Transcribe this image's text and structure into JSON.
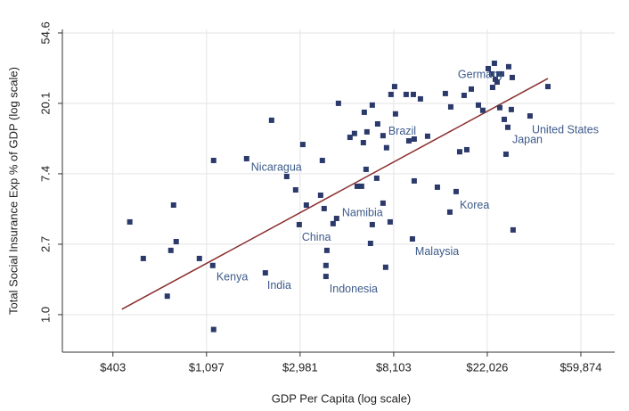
{
  "chart_data": {
    "type": "scatter",
    "xlabel": "GDP Per Capita (log scale)",
    "ylabel": "Total Social Insurance Exp % of GDP (log scale)",
    "xscale": "log",
    "yscale": "log",
    "grid": true,
    "xlim": [
      235,
      86000
    ],
    "ylim": [
      0.587,
      57.4
    ],
    "xticks": [
      {
        "value": 403.43,
        "label": "$403"
      },
      {
        "value": 1096.63,
        "label": "$1,097"
      },
      {
        "value": 2980.96,
        "label": "$2,981"
      },
      {
        "value": 8103.08,
        "label": "$8,103"
      },
      {
        "value": 22026.47,
        "label": "$22,026"
      },
      {
        "value": 59874.14,
        "label": "$59,874"
      }
    ],
    "yticks": [
      {
        "value": 1.0,
        "label": "1.0"
      },
      {
        "value": 2.718,
        "label": "2.7"
      },
      {
        "value": 7.389,
        "label": "7.4"
      },
      {
        "value": 20.086,
        "label": "20.1"
      },
      {
        "value": 54.598,
        "label": "54.6"
      }
    ],
    "color": "#2b3a6b",
    "x": [
      483,
      558,
      721,
      749,
      771,
      793,
      1016,
      1172,
      1183,
      1183,
      1683,
      2056,
      2198,
      2584,
      2842,
      2953,
      3069,
      3187,
      3711,
      3781,
      3853,
      3929,
      3929,
      3969,
      4240,
      4403,
      4490,
      5080,
      5329,
      5487,
      5749,
      5860,
      5918,
      6031,
      6088,
      6325,
      6446,
      6446,
      6760,
      6827,
      7229,
      7229,
      7436,
      7507,
      7802,
      7872,
      8183,
      8259,
      9256,
      9529,
      9997,
      10087,
      10087,
      9898,
      10785,
      11638,
      12924,
      14074,
      14767,
      14911,
      15788,
      16401,
      17197,
      17699,
      18569,
      20036,
      21001,
      22251,
      23770,
      23110,
      23320,
      24010,
      24460,
      24930,
      25660,
      27690,
      28760,
      25170,
      26400,
      26900,
      27430,
      28480,
      29020,
      34780,
      42100
    ],
    "values": [
      3.73,
      2.22,
      1.3,
      2.49,
      4.74,
      2.82,
      2.22,
      2.01,
      8.93,
      0.81,
      9.16,
      1.81,
      15.8,
      7.11,
      5.88,
      3.59,
      11.2,
      4.74,
      5.45,
      8.93,
      4.51,
      2.01,
      1.72,
      2.49,
      3.64,
      3.92,
      20.1,
      12.4,
      13.1,
      6.19,
      6.19,
      11.5,
      17.7,
      7.87,
      13.4,
      2.75,
      3.59,
      19.6,
      6.94,
      15.0,
      12.7,
      4.87,
      1.96,
      10.7,
      3.73,
      22.8,
      25.5,
      17.3,
      22.8,
      11.8,
      22.8,
      12.1,
      6.68,
      2.93,
      21.4,
      12.6,
      6.11,
      23.1,
      4.29,
      19.1,
      5.74,
      10.1,
      22.5,
      10.4,
      24.6,
      19.6,
      18.2,
      32.9,
      35.5,
      30.5,
      25.2,
      28.3,
      27.2,
      30.5,
      30.5,
      33.8,
      29.0,
      18.9,
      16.0,
      9.76,
      14.3,
      18.4,
      3.33,
      16.8,
      25.5
    ],
    "fit_line": {
      "x": [
        444,
        42100
      ],
      "values": [
        1.08,
        28.6
      ],
      "color": "#8b2d2d"
    },
    "annotation_color": "#3d5a8a",
    "annotations": [
      {
        "text": "Germany",
        "x": 16090,
        "y": 30.1
      },
      {
        "text": "Brazil",
        "x": 7650,
        "y": 13.4
      },
      {
        "text": "United States",
        "x": 35460,
        "y": 13.7
      },
      {
        "text": "Japan",
        "x": 28760,
        "y": 11.95
      },
      {
        "text": "Nicaragua",
        "x": 1765,
        "y": 8.07
      },
      {
        "text": "Namibia",
        "x": 4664,
        "y": 4.23
      },
      {
        "text": "Korea",
        "x": 16401,
        "y": 4.69
      },
      {
        "text": "China",
        "x": 3038,
        "y": 2.97
      },
      {
        "text": "Malaysia",
        "x": 10187,
        "y": 2.43
      },
      {
        "text": "Kenya",
        "x": 1218,
        "y": 1.7
      },
      {
        "text": "India",
        "x": 2096,
        "y": 1.5
      },
      {
        "text": "Indonesia",
        "x": 4080,
        "y": 1.43
      }
    ]
  }
}
